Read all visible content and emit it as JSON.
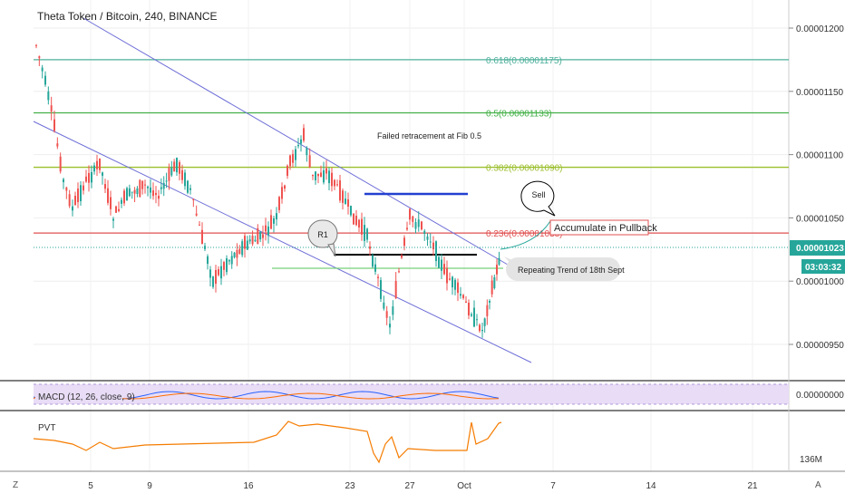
{
  "chart_data": [
    {
      "type": "candlestick",
      "title": "Theta Token / Bitcoin, 240, BINANCE",
      "y_ticks": [
        "0.00001200",
        "0.00001150",
        "0.00001100",
        "0.00001050",
        "0.00001000",
        "0.00000950"
      ],
      "x_ticks": [
        "5",
        "9",
        "16",
        "23",
        "27",
        "Oct",
        "7",
        "14",
        "21"
      ],
      "last_price": "0.00001023",
      "countdown": "03:03:32",
      "fib_levels": [
        {
          "label": "0.618(0.00001175)",
          "value": 1.175e-05,
          "color": "#4caf9a"
        },
        {
          "label": "0.5(0.00001133)",
          "value": 1.133e-05,
          "color": "#43b047"
        },
        {
          "label": "0.382(0.00001090)",
          "value": 1.09e-05,
          "color": "#9cbf2e"
        },
        {
          "label": "0.236(0.00001038)",
          "value": 1.038e-05,
          "color": "#e05050"
        }
      ],
      "annotations": {
        "failed": "Failed retracement at Fib  0.5",
        "sell": "Sell",
        "accumulate": "Accumulate in Pullback",
        "r1": "R1",
        "repeating": "Repeating Trend of 18th Sept"
      },
      "colors": {
        "up": "#26a69a",
        "down": "#ef5350",
        "channel": "#6f6fd8",
        "macd_bg": "#e8dcf6",
        "pvt": "#f57c00"
      }
    },
    {
      "type": "line",
      "name_label": "MACD (12, 26, close, 9)",
      "y_ticks": [
        "0.00000000"
      ]
    },
    {
      "type": "line",
      "name_label": "PVT",
      "y_ticks": [
        "136M"
      ]
    }
  ],
  "toolbar": {
    "left_glyph": "Z",
    "right_glyph": "A"
  }
}
